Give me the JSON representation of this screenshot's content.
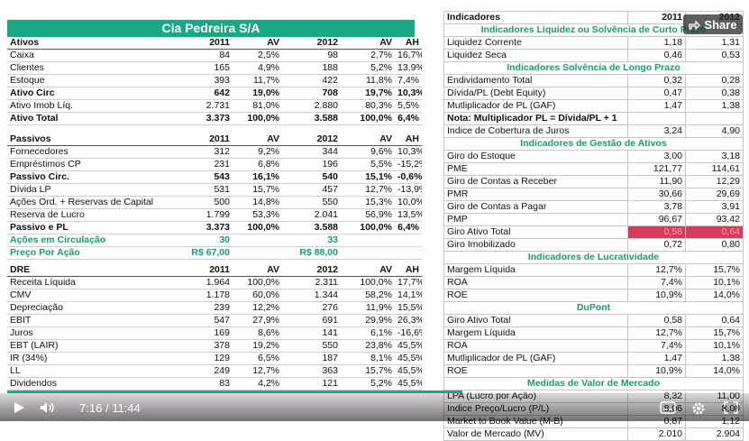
{
  "company_title": "Cia Pedreira S/A",
  "ativos": {
    "header": [
      "Ativos",
      "2011",
      "AV",
      "2012",
      "AV",
      "AH"
    ],
    "rows": [
      [
        "Caixa",
        "84",
        "2,5%",
        "98",
        "2,7%",
        "16,7%"
      ],
      [
        "Clientes",
        "165",
        "4,9%",
        "188",
        "5,2%",
        "13,9%"
      ],
      [
        "Estoque",
        "393",
        "11,7%",
        "422",
        "11,8%",
        "7,4%"
      ],
      [
        "Ativo Circ",
        "642",
        "19,0%",
        "708",
        "19,7%",
        "10,3%"
      ],
      [
        "Ativo Imob Líq.",
        "2.731",
        "81,0%",
        "2.880",
        "80,3%",
        "5,5%"
      ],
      [
        "Ativo Total",
        "3.373",
        "100,0%",
        "3.588",
        "100,0%",
        "6,4%"
      ]
    ]
  },
  "passivos": {
    "header": [
      "Passivos",
      "2011",
      "AV",
      "2012",
      "AV",
      "AH"
    ],
    "rows": [
      [
        "Fornecedores",
        "312",
        "9,2%",
        "344",
        "9,6%",
        "10,3%"
      ],
      [
        "Empréstimos CP",
        "231",
        "6,8%",
        "196",
        "5,5%",
        "-15,2%"
      ],
      [
        "Passivo Circ.",
        "543",
        "16,1%",
        "540",
        "15,1%",
        "-0,6%"
      ],
      [
        "Dívida LP",
        "531",
        "15,7%",
        "457",
        "12,7%",
        "-13,9%"
      ],
      [
        "Ações Ord. + Reservas de Capital",
        "500",
        "14,8%",
        "550",
        "15,3%",
        "10,0%"
      ],
      [
        "Reserva de Lucro",
        "1.799",
        "53,3%",
        "2.041",
        "56,9%",
        "13,5%"
      ],
      [
        "Passivo e PL",
        "3.373",
        "100,0%",
        "3.588",
        "100,0%",
        "6,4%"
      ]
    ],
    "acoes_label": "Ações em Circulação",
    "acoes_2011": "30",
    "acoes_2012": "33",
    "preco_label": "Preço Por Ação",
    "preco_2011": "R$ 67,00",
    "preco_2012": "R$ 88,00"
  },
  "dre": {
    "header": [
      "DRE",
      "2011",
      "AV",
      "2012",
      "AV",
      "AH"
    ],
    "rows": [
      [
        "Receita Líquida",
        "1.964",
        "100,0%",
        "2.311",
        "100,0%",
        "17,7%"
      ],
      [
        "CMV",
        "1.178",
        "60,0%",
        "1.344",
        "58,2%",
        "14,1%"
      ],
      [
        "Depreciação",
        "239",
        "12,2%",
        "276",
        "11,9%",
        "15,5%"
      ],
      [
        "EBIT",
        "547",
        "27,9%",
        "691",
        "29,9%",
        "26,3%"
      ],
      [
        "Juros",
        "169",
        "8,6%",
        "141",
        "6,1%",
        "-16,6%"
      ],
      [
        "EBT (LAIR)",
        "378",
        "19,2%",
        "550",
        "23,8%",
        "45,5%"
      ],
      [
        "IR (34%)",
        "129",
        "6,5%",
        "187",
        "8,1%",
        "45,5%"
      ],
      [
        "LL",
        "249",
        "12,7%",
        "363",
        "15,7%",
        "45,5%"
      ],
      [
        "Dividendos",
        "83",
        "4,2%",
        "121",
        "5,2%",
        "45,5%"
      ]
    ]
  },
  "indicadores": {
    "header": [
      "Indicadores",
      "2011",
      "2012"
    ],
    "sections": [
      {
        "title": "Indicadores Liquidez ou Solvência de Curto Prazo",
        "rows": [
          [
            "Liquidez Corrente",
            "1,18",
            "1,31"
          ],
          [
            "Liquidez Seca",
            "0,46",
            "0,53"
          ]
        ]
      },
      {
        "title": "Indicadores Solvência de Longo Prazo",
        "rows": [
          [
            "Endividamento Total",
            "0,32",
            "0,28"
          ],
          [
            "Dívida/PL (Debt Equity)",
            "0,47",
            "0,38"
          ],
          [
            "Mutliplicador de PL (GAF)",
            "1,47",
            "1,38"
          ],
          [
            "Nota: Multiplicador PL = Dívida/PL + 1",
            "",
            ""
          ],
          [
            "Indice de Cobertura de Juros",
            "3,24",
            "4,90"
          ]
        ]
      },
      {
        "title": "Indicadores de Gestão de Ativos",
        "rows": [
          [
            "Giro do Estoque",
            "3,00",
            "3,18"
          ],
          [
            "PME",
            "121,77",
            "114,61"
          ],
          [
            "Giro de Contas a Receber",
            "11,90",
            "12,29"
          ],
          [
            "PMR",
            "30,66",
            "29,69"
          ],
          [
            "Giro de Contas a Pagar",
            "3,78",
            "3,91"
          ],
          [
            "PMP",
            "96,67",
            "93,42"
          ],
          [
            "Giro Ativo Total",
            "0,58",
            "0,64"
          ],
          [
            "Giro Imobilizado",
            "0,72",
            "0,80"
          ]
        ]
      },
      {
        "title": "Indicadores de Lucratividade",
        "rows": [
          [
            "Margem Líquida",
            "12,7%",
            "15,7%"
          ],
          [
            "ROA",
            "7,4%",
            "10,1%"
          ],
          [
            "ROE",
            "10,9%",
            "14,0%"
          ]
        ]
      },
      {
        "title": "DuPont",
        "rows": [
          [
            "Giro Ativo Total",
            "0,58",
            "0,64"
          ],
          [
            "Margem Líquida",
            "12,7%",
            "15,7%"
          ],
          [
            "ROA",
            "7,4%",
            "10,1%"
          ],
          [
            "Mutliplicador de PL (GAF)",
            "1,47",
            "1,38"
          ],
          [
            "ROE",
            "10,9%",
            "14,0%"
          ]
        ]
      },
      {
        "title": "Medidas de Valor de Mercado",
        "rows": [
          [
            "LPA (Lucro por Ação)",
            "8,32",
            "11,00"
          ],
          [
            "Indice Preço/Lucro (P/L)",
            "8,06",
            "8,00"
          ],
          [
            "Market to Book Value (M-B)",
            "0,87",
            "1,12"
          ],
          [
            "Valor de Mercado (MV)",
            "2.010",
            "2.904"
          ]
        ]
      }
    ]
  },
  "player": {
    "share_label": "Share",
    "current_time": "7:16",
    "separator": "/",
    "duration": "11:44",
    "progress_fraction": 0.62
  }
}
